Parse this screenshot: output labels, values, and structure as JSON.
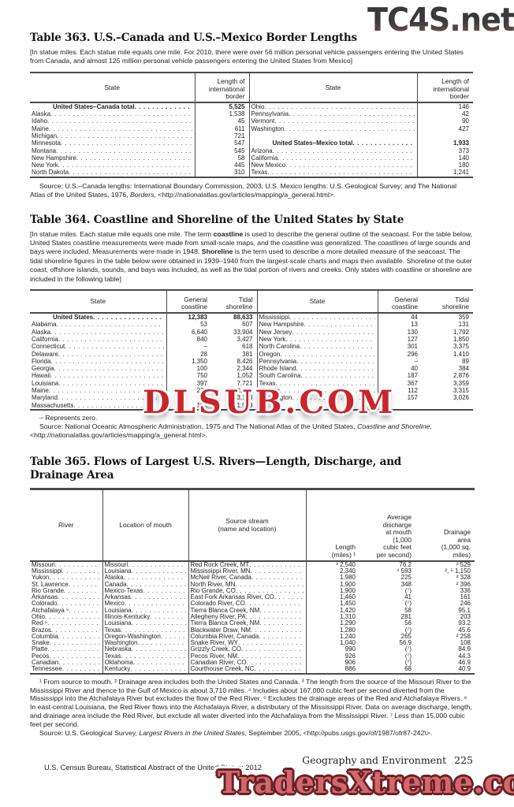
{
  "watermarks": {
    "tc4s": "TC4S.net",
    "dlsub": "DLSUB.COM",
    "traders": "TradersXtreme.com"
  },
  "footer": {
    "section": "Geography and Environment",
    "page": "225",
    "census": "U.S. Census Bureau, Statistical Abstract of the United States: 2012"
  },
  "table363": {
    "title": "Table 363. U.S.–Canada and U.S.–Mexico Border Lengths",
    "note": "[In statue miles. Each statue mile equals one mile. For 2010, there were over 56 million personal vehicle passengers entering the United States from Canada, and almost 125 million personal vehicle passengers entering the United States from Mexico]",
    "headers": {
      "state": "State",
      "length": "Length of\ninternational\nborder"
    },
    "rows_left": [
      {
        "l": "United States–Canada total",
        "v": "5,525",
        "b": true
      },
      {
        "l": "Alaska",
        "v": "1,538"
      },
      {
        "l": "Idaho",
        "v": "45"
      },
      {
        "l": "Maine",
        "v": "611"
      },
      {
        "l": "Michigan",
        "v": "721"
      },
      {
        "l": "Minnesota",
        "v": "547"
      },
      {
        "l": "Montana",
        "v": "545"
      },
      {
        "l": "New Hampshire",
        "v": "58"
      },
      {
        "l": "New York",
        "v": "445"
      },
      {
        "l": "North Dakota",
        "v": "310"
      }
    ],
    "rows_right": [
      {
        "l": "Ohio",
        "v": "146"
      },
      {
        "l": "Pennsylvania",
        "v": "42"
      },
      {
        "l": "Vermont",
        "v": "90"
      },
      {
        "l": "Washington",
        "v": "427"
      },
      {},
      {
        "l": "United States–Mexico total",
        "v": "1,933",
        "b": true
      },
      {
        "l": "Arizona",
        "v": "373"
      },
      {
        "l": "California",
        "v": "140"
      },
      {
        "l": "New Mexico",
        "v": "180"
      },
      {
        "l": "Texas",
        "v": "1,241"
      }
    ],
    "source_parts": [
      {
        "t": "Source: U.S.–Canada lengths: International Boundary Commission, 2003; U.S. Mexico lengths: U.S. Geological Survey; and The National Atlas of the United States, 1976, "
      },
      {
        "t": "Borders",
        "i": true
      },
      {
        "t": ", <http://nationalatlas.gov/articles/mapping/a_general.html>."
      }
    ]
  },
  "table364": {
    "title": "Table 364. Coastline and Shoreline of the United States by State",
    "note_parts": [
      {
        "t": "[In statue miles. Each statue mile equals one mile. The term "
      },
      {
        "t": "coastline",
        "b": true
      },
      {
        "t": " is used to describe the general outline of the seacoast. For the table below, United States coastline measurements were made from small-scale maps, and the coastline was generalized. The coastlines of large sounds and bays were included. Measurements were made in 1948. "
      },
      {
        "t": "Shoreline",
        "b": true
      },
      {
        "t": " is the term used to describe a more detailed measure of the seacoast. The tidal shoreline figures in the table below were obtained in 1939–1940 from the largest-scale charts and maps then available. Shoreline of the outer coast, offshore islands, sounds, and bays was included, as well as the tidal portion of rivers and creeks. Only states with coastline or shoreline are included in the following table]"
      }
    ],
    "headers": {
      "state": "State",
      "general": "General\ncoastline",
      "tidal": "Tidal\nshoreline"
    },
    "rows_left": [
      {
        "l": "United States",
        "g": "12,383",
        "t2": "88,633",
        "b": true
      },
      {
        "l": "Alabama",
        "g": "53",
        "t2": "607"
      },
      {
        "l": "Alaska",
        "g": "6,640",
        "t2": "33,904"
      },
      {
        "l": "California",
        "g": "840",
        "t2": "3,427"
      },
      {
        "l": "Connecticut",
        "g": "–",
        "t2": "618"
      },
      {
        "l": "Delaware",
        "g": "28",
        "t2": "381"
      },
      {
        "l": "Florida",
        "g": "1,350",
        "t2": "8,426"
      },
      {
        "l": "Georgia",
        "g": "100",
        "t2": "2,344"
      },
      {
        "l": "Hawaii",
        "g": "750",
        "t2": "1,052"
      },
      {
        "l": "Louisiana",
        "g": "397",
        "t2": "7,721"
      },
      {
        "l": "Maine",
        "g": "228",
        "t2": "3,478"
      },
      {
        "l": "Maryland",
        "g": "31",
        "t2": "3,190"
      },
      {
        "l": "Massachusetts",
        "g": "192",
        "t2": "1,519"
      }
    ],
    "rows_right": [
      {
        "l": "Mississippi",
        "g": "44",
        "t2": "359"
      },
      {
        "l": "New Hampshire",
        "g": "13",
        "t2": "131"
      },
      {
        "l": "New Jersey",
        "g": "130",
        "t2": "1,792"
      },
      {
        "l": "New York",
        "g": "127",
        "t2": "1,850"
      },
      {
        "l": "North Carolina",
        "g": "301",
        "t2": "3,375"
      },
      {
        "l": "Oregon",
        "g": "296",
        "t2": "1,410"
      },
      {
        "l": "Pennsylvania",
        "g": "–",
        "t2": "89"
      },
      {
        "l": "Rhode Island",
        "g": "40",
        "t2": "384"
      },
      {
        "l": "South Carolina",
        "g": "187",
        "t2": "2,876"
      },
      {
        "l": "Texas",
        "g": "367",
        "t2": "3,359"
      },
      {
        "l": "Virginia",
        "g": "112",
        "t2": "3,315"
      },
      {
        "l": "Washington",
        "g": "157",
        "t2": "3,026"
      },
      {}
    ],
    "zero_note": "– Represents zero.",
    "source_parts": [
      {
        "t": "Source: National Oceanic Atmospheric Administration, 1975 and The National Atlas of the United States, "
      },
      {
        "t": "Coastline and Shoreline",
        "i": true
      },
      {
        "t": ", <http://nationalatlas.gov/articles/mapping/a_general.html>."
      }
    ]
  },
  "table365": {
    "title": "Table 365. Flows of Largest U.S. Rivers—Length, Discharge, and Drainage Area",
    "headers": {
      "river": "River",
      "mouth": "Location of mouth",
      "source": "Source stream\n(name and location)",
      "length": "Length\n(miles) ¹",
      "discharge": "Average\ndischarge\nat mouth\n(1,000\ncubic feet\nper second)",
      "drainage": "Drainage\narea\n(1,000 sq.\nmiles)"
    },
    "rows": [
      [
        "Missouri",
        "Missouri",
        "Red Rock Creek, MT",
        "³ 2,540",
        "76.2",
        "² 529"
      ],
      [
        "Mississippi",
        "Louisiana",
        "Mississippi River, MN",
        "2,340",
        "⁴ 593",
        "², ⁵ 1,150"
      ],
      [
        "Yukon",
        "Alaska",
        "McNeil River, Canada",
        "1,980",
        "225",
        "² 328"
      ],
      [
        "St. Lawrence",
        "Canada",
        "North River, MN",
        "1,900",
        "348",
        "² 396"
      ],
      [
        "Rio Grande",
        "Mexico-Texas",
        "Rio Grande, CO",
        "1,900",
        "(⁷)",
        "336"
      ],
      [
        "Arkansas",
        "Arkansas",
        "East Fork Arkansas River, CO",
        "1,460",
        "41",
        "161"
      ],
      [
        "Colorado",
        "Mexico",
        "Colorado River, CO",
        "1,450",
        "(⁷)",
        "246"
      ],
      [
        "Atchafalaya ⁶",
        "Louisiana",
        "Tierra Blanca Creek, NM",
        "1,420",
        "58",
        "95.1"
      ],
      [
        "Ohio",
        "Illinois-Kentucky",
        "Allegheny River, PA",
        "1,310",
        "281",
        "203"
      ],
      [
        "Red ⁶",
        "Louisiana",
        "Tierra Blanca Creek, NM",
        "1,290",
        "56",
        "93.2"
      ],
      [
        "Brazos",
        "Texas",
        "Blackwater Draw, NM",
        "1,280",
        "(⁷)",
        "45.6"
      ],
      [
        "Columbia",
        "Oregon-Washington",
        "Columbia River, Canada",
        "1,240",
        "265",
        "² 258"
      ],
      [
        "Snake",
        "Washington",
        "Snake River, WY",
        "1,040",
        "56.9",
        "108"
      ],
      [
        "Platte",
        "Nebraska",
        "Grizzly Creek, CO",
        "990",
        "(⁷)",
        "84.9"
      ],
      [
        "Pecos",
        "Texas",
        "Pecos River, NM",
        "926",
        "(⁷)",
        "44.3"
      ],
      [
        "Canadian",
        "Oklahoma",
        "Canadian River, CO",
        "906",
        "(⁷)",
        "46.9"
      ],
      [
        "Tennessee",
        "Kentucky",
        "Courthouse Creek, NC",
        "886",
        "68",
        "40.9"
      ]
    ],
    "footnote": "¹ From source to mouth. ² Drainage area includes both the United States and Canada. ³ The length from the source of the Missouri River to the Mississippi River and thence to the Gulf of Mexico is about 3,710 miles. ⁴ Includes about 167,000 cubic feet per second diverted from the Mississippi into the Atchafalaya River but excludes the flow of the Red River. ⁵ Excludes the drainage areas of the Red and Atchafalaya Rivers. ⁶ In east-central Louisiana, the Red River flows into the Atchafalaya River, a distributary of the Mississippi River. Data on average discharge, length, and drainage area include the Red River, but exclude all water diverted into the Atchafalaya from the Mississippi River. ⁷ Less than 15,000 cubic feet per second.",
    "source_parts": [
      {
        "t": "Source: U.S. Geological Survey, "
      },
      {
        "t": "Largest Rivers in the United States",
        "i": true
      },
      {
        "t": ", September 2005, <http://pubs.usgs.gov/of/1987/ofr87-242\\>."
      }
    ]
  }
}
